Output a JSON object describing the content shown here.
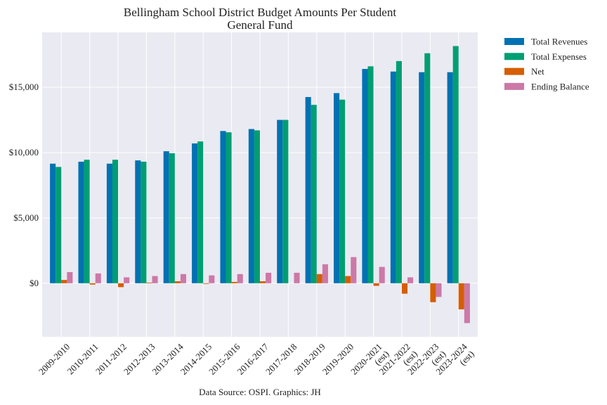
{
  "chart_data": {
    "type": "bar",
    "title": "Bellingham School District Budget Amounts Per Student",
    "subtitle": "General Fund",
    "xlabel": "",
    "ylabel": "",
    "source_note": "Data Source: OSPI. Graphics: JH",
    "ylim": [
      -4100,
      19200
    ],
    "yticks": [
      0,
      5000,
      10000,
      15000
    ],
    "ytick_labels": [
      "$0",
      "$5,000",
      "$10,000",
      "$15,000"
    ],
    "grid": true,
    "legend_position": "outside-top-right",
    "categories": [
      [
        "2009-2010"
      ],
      [
        "2010-2011"
      ],
      [
        "2011-2012"
      ],
      [
        "2012-2013"
      ],
      [
        "2013-2014"
      ],
      [
        "2014-2015"
      ],
      [
        "2015-2016"
      ],
      [
        "2016-2017"
      ],
      [
        "2017-2018"
      ],
      [
        "2018-2019"
      ],
      [
        "2019-2020"
      ],
      [
        "2020-2021",
        "(est)"
      ],
      [
        "2021-2022",
        "(est)"
      ],
      [
        "2022-2023",
        "(est)"
      ],
      [
        "2023-2024",
        "(est)"
      ]
    ],
    "series": [
      {
        "name": "Total Revenues",
        "color": "#0072b2",
        "values": [
          9150,
          9300,
          9150,
          9400,
          10100,
          10700,
          11650,
          11800,
          12500,
          14250,
          14550,
          16400,
          16200,
          16150,
          16150
        ]
      },
      {
        "name": "Total Expenses",
        "color": "#009e73",
        "values": [
          8900,
          9450,
          9450,
          9300,
          9950,
          10850,
          11550,
          11700,
          12500,
          13650,
          14050,
          16600,
          17000,
          17600,
          18150
        ]
      },
      {
        "name": "Net",
        "color": "#d55e00",
        "values": [
          250,
          -100,
          -300,
          50,
          150,
          -50,
          100,
          150,
          0,
          700,
          550,
          -200,
          -800,
          -1450,
          -2000
        ]
      },
      {
        "name": "Ending Balance",
        "color": "#cc79a7",
        "values": [
          850,
          750,
          450,
          550,
          700,
          600,
          700,
          800,
          800,
          1450,
          2000,
          1250,
          450,
          -1050,
          -3050
        ]
      }
    ]
  }
}
